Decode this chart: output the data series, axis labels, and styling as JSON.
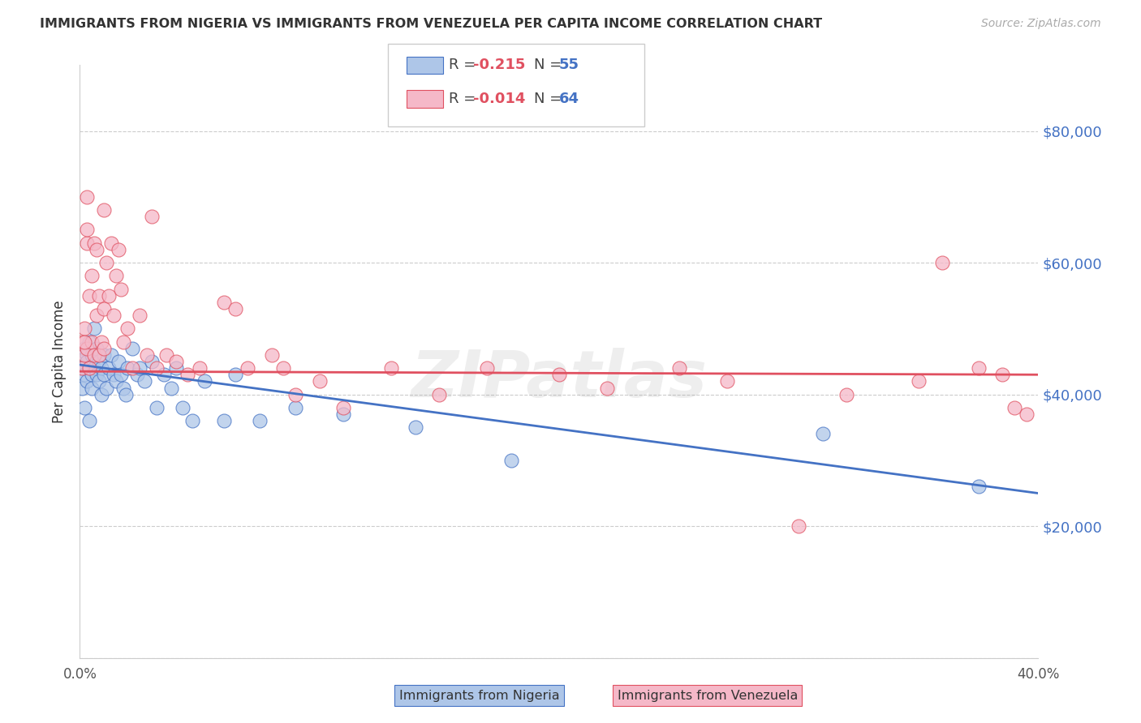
{
  "title": "IMMIGRANTS FROM NIGERIA VS IMMIGRANTS FROM VENEZUELA PER CAPITA INCOME CORRELATION CHART",
  "source": "Source: ZipAtlas.com",
  "ylabel": "Per Capita Income",
  "xlim": [
    0.0,
    0.4
  ],
  "ylim": [
    0,
    90000
  ],
  "yticks": [
    0,
    20000,
    40000,
    60000,
    80000
  ],
  "ytick_labels": [
    "",
    "$20,000",
    "$40,000",
    "$60,000",
    "$80,000"
  ],
  "xticks": [
    0.0,
    0.1,
    0.2,
    0.3,
    0.4
  ],
  "xtick_labels": [
    "0.0%",
    "",
    "",
    "",
    "40.0%"
  ],
  "background_color": "#ffffff",
  "watermark": "ZIPatlas",
  "nigeria_color": "#aec6e8",
  "venezuela_color": "#f5b8c8",
  "nigeria_line_color": "#4472c4",
  "venezuela_line_color": "#e05060",
  "nigeria_r": -0.215,
  "nigeria_n": 55,
  "venezuela_r": -0.014,
  "venezuela_n": 64,
  "nigeria_x": [
    0.001,
    0.001,
    0.002,
    0.002,
    0.002,
    0.003,
    0.003,
    0.003,
    0.004,
    0.004,
    0.004,
    0.005,
    0.005,
    0.005,
    0.006,
    0.006,
    0.007,
    0.007,
    0.008,
    0.008,
    0.009,
    0.009,
    0.01,
    0.01,
    0.011,
    0.012,
    0.013,
    0.014,
    0.015,
    0.016,
    0.017,
    0.018,
    0.019,
    0.02,
    0.022,
    0.024,
    0.025,
    0.027,
    0.03,
    0.032,
    0.035,
    0.038,
    0.04,
    0.043,
    0.047,
    0.052,
    0.06,
    0.065,
    0.075,
    0.09,
    0.11,
    0.14,
    0.18,
    0.31,
    0.375
  ],
  "nigeria_y": [
    44000,
    41000,
    47000,
    43000,
    38000,
    46000,
    42000,
    45000,
    44000,
    48000,
    36000,
    43000,
    41000,
    46000,
    44000,
    50000,
    43000,
    47000,
    42000,
    45000,
    40000,
    44000,
    46000,
    43000,
    41000,
    44000,
    46000,
    43000,
    42000,
    45000,
    43000,
    41000,
    40000,
    44000,
    47000,
    43000,
    44000,
    42000,
    45000,
    38000,
    43000,
    41000,
    44000,
    38000,
    36000,
    42000,
    36000,
    43000,
    36000,
    38000,
    37000,
    35000,
    30000,
    34000,
    26000
  ],
  "venezuela_x": [
    0.001,
    0.001,
    0.002,
    0.002,
    0.003,
    0.003,
    0.003,
    0.004,
    0.004,
    0.005,
    0.005,
    0.006,
    0.006,
    0.007,
    0.007,
    0.008,
    0.008,
    0.009,
    0.01,
    0.01,
    0.011,
    0.012,
    0.013,
    0.014,
    0.015,
    0.016,
    0.017,
    0.018,
    0.02,
    0.022,
    0.025,
    0.028,
    0.032,
    0.036,
    0.04,
    0.045,
    0.05,
    0.06,
    0.065,
    0.07,
    0.08,
    0.085,
    0.09,
    0.1,
    0.11,
    0.13,
    0.15,
    0.17,
    0.2,
    0.22,
    0.25,
    0.27,
    0.3,
    0.32,
    0.35,
    0.36,
    0.375,
    0.385,
    0.39,
    0.395,
    0.002,
    0.003,
    0.01,
    0.03
  ],
  "venezuela_y": [
    44000,
    48000,
    46000,
    50000,
    63000,
    65000,
    47000,
    55000,
    44000,
    48000,
    58000,
    63000,
    46000,
    62000,
    52000,
    55000,
    46000,
    48000,
    53000,
    47000,
    60000,
    55000,
    63000,
    52000,
    58000,
    62000,
    56000,
    48000,
    50000,
    44000,
    52000,
    46000,
    44000,
    46000,
    45000,
    43000,
    44000,
    54000,
    53000,
    44000,
    46000,
    44000,
    40000,
    42000,
    38000,
    44000,
    40000,
    44000,
    43000,
    41000,
    44000,
    42000,
    20000,
    40000,
    42000,
    60000,
    44000,
    43000,
    38000,
    37000,
    48000,
    70000,
    68000,
    67000
  ],
  "nig_line_x0": 0.0,
  "nig_line_x1": 0.4,
  "nig_line_y0": 44500,
  "nig_line_y1": 25000,
  "ven_line_x0": 0.0,
  "ven_line_x1": 0.4,
  "ven_line_y0": 43500,
  "ven_line_y1": 43000
}
